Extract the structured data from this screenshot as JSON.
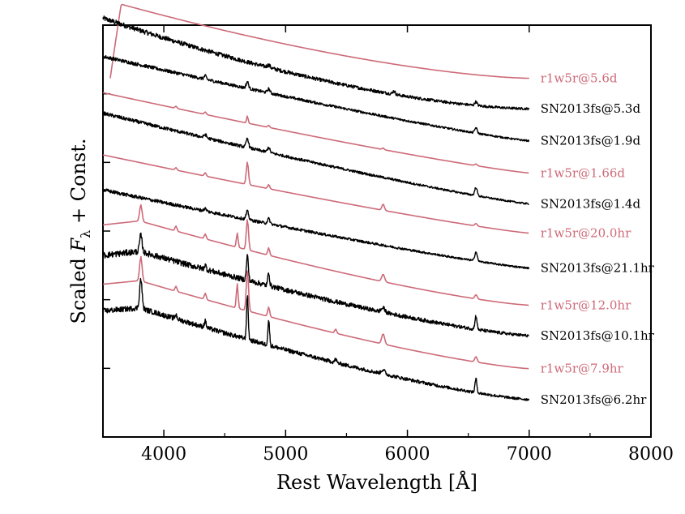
{
  "chart_data": {
    "type": "line",
    "xlabel": "Rest Wavelength [Å]",
    "ylabel": "Scaled F_λ + Const.",
    "ylabel_parts": {
      "prefix": "Scaled ",
      "symbol": "F",
      "subscript": "λ",
      "suffix": " + Const."
    },
    "xlim": [
      3500,
      8000
    ],
    "xticks": [
      4000,
      5000,
      6000,
      7000,
      8000
    ],
    "ylim": [
      0,
      10
    ],
    "yticks_count": 5,
    "grid": false,
    "colors": {
      "model": "#cd6a78",
      "observed": "#000000"
    },
    "series": [
      {
        "name": "r1w5r@5.6d",
        "kind": "model",
        "x_start": 3560,
        "x_end": 7000,
        "end_offset": 8.71,
        "shape": "peaked",
        "peak_height": 1.87,
        "lines": []
      },
      {
        "name": "SN2013fs@5.3d",
        "kind": "observed",
        "x_start": 3500,
        "x_end": 7000,
        "end_offset": 7.97,
        "shape": "broad",
        "height": 2.2,
        "noise": 0.055,
        "lines": [
          [
            6563,
            0.09,
            10
          ],
          [
            5890,
            0.08,
            10
          ],
          [
            4861,
            0.06,
            12
          ]
        ]
      },
      {
        "name": "SN2013fs@1.9d",
        "kind": "observed",
        "x_start": 3500,
        "x_end": 7000,
        "end_offset": 7.19,
        "shape": "flat",
        "height": 2.05,
        "noise": 0.04,
        "lines": [
          [
            6563,
            0.13,
            10
          ],
          [
            4861,
            0.1,
            10
          ],
          [
            4686,
            0.16,
            10
          ],
          [
            4340,
            0.08,
            10
          ]
        ]
      },
      {
        "name": "r1w5r@1.66d",
        "kind": "model",
        "x_start": 3500,
        "x_end": 7000,
        "end_offset": 6.41,
        "shape": "flat",
        "height": 1.95,
        "lines": [
          [
            6563,
            0.04,
            10
          ],
          [
            5801,
            0.04,
            8
          ],
          [
            4861,
            0.05,
            8
          ],
          [
            4686,
            0.18,
            6
          ],
          [
            4340,
            0.06,
            8
          ],
          [
            4100,
            0.05,
            8
          ]
        ]
      },
      {
        "name": "SN2013fs@1.4d",
        "kind": "observed",
        "x_start": 3500,
        "x_end": 7000,
        "end_offset": 5.66,
        "shape": "flat",
        "height": 2.2,
        "noise": 0.04,
        "lines": [
          [
            6563,
            0.2,
            10
          ],
          [
            4861,
            0.12,
            10
          ],
          [
            4686,
            0.22,
            10
          ],
          [
            4340,
            0.08,
            10
          ]
        ]
      },
      {
        "name": "r1w5r@20.0hr",
        "kind": "model",
        "x_start": 3500,
        "x_end": 7000,
        "end_offset": 4.95,
        "shape": "flat",
        "height": 1.9,
        "lines": [
          [
            6563,
            0.06,
            10
          ],
          [
            5801,
            0.15,
            10
          ],
          [
            4861,
            0.1,
            8
          ],
          [
            4686,
            0.55,
            9
          ],
          [
            4340,
            0.08,
            8
          ],
          [
            4100,
            0.06,
            8
          ]
        ]
      },
      {
        "name": "SN2013fs@21.1hr",
        "kind": "observed",
        "x_start": 3500,
        "x_end": 7000,
        "end_offset": 4.1,
        "shape": "flat",
        "height": 1.9,
        "noise": 0.04,
        "lines": [
          [
            6563,
            0.22,
            10
          ],
          [
            4861,
            0.12,
            10
          ],
          [
            4686,
            0.2,
            10
          ],
          [
            4340,
            0.06,
            10
          ]
        ]
      },
      {
        "name": "r1w5r@12.0hr",
        "kind": "model",
        "x_start": 3500,
        "x_end": 7000,
        "end_offset": 3.2,
        "shape": "ovi",
        "height": 2.3,
        "lines": [
          [
            6563,
            0.1,
            10
          ],
          [
            5801,
            0.18,
            12
          ],
          [
            4861,
            0.18,
            8
          ],
          [
            4686,
            0.75,
            9
          ],
          [
            4603,
            0.35,
            7
          ],
          [
            4340,
            0.12,
            8
          ],
          [
            4100,
            0.12,
            8
          ],
          [
            3811,
            0.4,
            10
          ]
        ]
      },
      {
        "name": "SN2013fs@10.1hr",
        "kind": "observed",
        "x_start": 3500,
        "x_end": 7000,
        "end_offset": 2.46,
        "shape": "ovi",
        "height": 2.3,
        "noise": 0.07,
        "lines": [
          [
            6563,
            0.33,
            8
          ],
          [
            5801,
            0.1,
            15
          ],
          [
            4861,
            0.33,
            7
          ],
          [
            4686,
            0.6,
            8
          ],
          [
            4340,
            0.1,
            8
          ],
          [
            3811,
            0.4,
            10
          ]
        ]
      },
      {
        "name": "r1w5r@7.9hr",
        "kind": "model",
        "x_start": 3500,
        "x_end": 7000,
        "end_offset": 1.66,
        "shape": "ovi",
        "height": 2.4,
        "lines": [
          [
            6563,
            0.13,
            10
          ],
          [
            5801,
            0.25,
            12
          ],
          [
            5411,
            0.1,
            8
          ],
          [
            4861,
            0.23,
            8
          ],
          [
            4686,
            1.0,
            9
          ],
          [
            4603,
            0.6,
            7
          ],
          [
            4340,
            0.15,
            8
          ],
          [
            4100,
            0.12,
            8
          ],
          [
            3811,
            0.6,
            10
          ]
        ]
      },
      {
        "name": "SN2013fs@6.2hr",
        "kind": "observed",
        "x_start": 3500,
        "x_end": 7000,
        "end_offset": 0.91,
        "shape": "ovi",
        "height": 2.5,
        "noise": 0.06,
        "lines": [
          [
            6563,
            0.33,
            8
          ],
          [
            5801,
            0.1,
            15
          ],
          [
            5411,
            0.08,
            8
          ],
          [
            4861,
            0.6,
            7
          ],
          [
            4686,
            1.05,
            7
          ],
          [
            4340,
            0.15,
            8
          ],
          [
            4100,
            0.1,
            8
          ],
          [
            3811,
            0.7,
            10
          ]
        ]
      }
    ]
  }
}
